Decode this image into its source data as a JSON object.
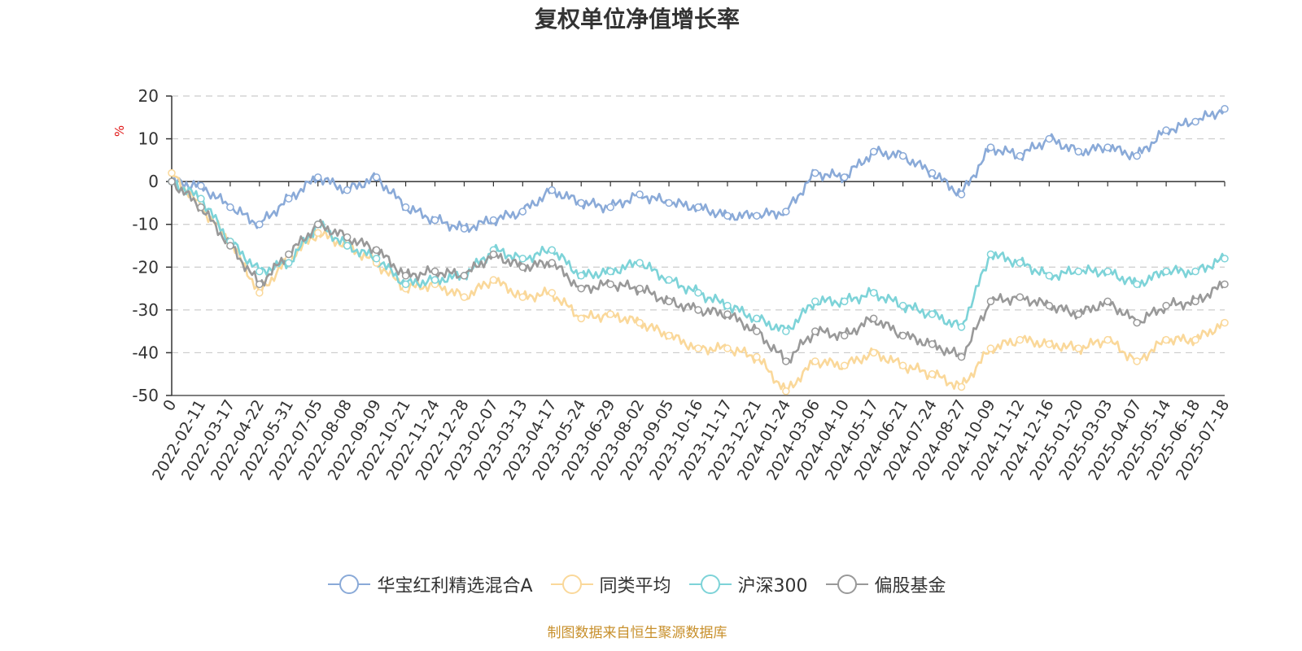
{
  "chart_data": {
    "type": "line",
    "title": "复权单位净值增长率",
    "ylabel": "%",
    "xlabel": "",
    "ylim": [
      -50,
      20
    ],
    "yticks": [
      20,
      10,
      0,
      -10,
      -20,
      -30,
      -40,
      -50
    ],
    "grid": true,
    "legend_position": "bottom",
    "categories": [
      "0",
      "2022-02-11",
      "2022-03-17",
      "2022-04-22",
      "2022-05-31",
      "2022-07-05",
      "2022-08-08",
      "2022-09-09",
      "2022-10-21",
      "2022-11-24",
      "2022-12-28",
      "2023-02-07",
      "2023-03-13",
      "2023-04-17",
      "2023-05-24",
      "2023-06-29",
      "2023-08-02",
      "2023-09-05",
      "2023-10-16",
      "2023-11-17",
      "2023-12-21",
      "2024-01-24",
      "2024-03-06",
      "2024-04-10",
      "2024-05-17",
      "2024-06-21",
      "2024-07-24",
      "2024-08-27",
      "2024-10-09",
      "2024-11-12",
      "2024-12-16",
      "2025-01-20",
      "2025-03-03",
      "2025-04-07",
      "2025-05-14",
      "2025-06-18",
      "2025-07-18"
    ],
    "series": [
      {
        "name": "华宝红利精选混合A",
        "color": "#8aaad8",
        "values": [
          0,
          -1,
          -6,
          -10,
          -4,
          1,
          -2,
          1,
          -6,
          -9,
          -11,
          -9,
          -7,
          -2,
          -5,
          -6,
          -3,
          -5,
          -6,
          -8,
          -8,
          -7,
          2,
          1,
          7,
          6,
          2,
          -3,
          8,
          6,
          10,
          7,
          8,
          6,
          12,
          14,
          17
        ]
      },
      {
        "name": "同类平均",
        "color": "#fad89a",
        "values": [
          2,
          -6,
          -14,
          -26,
          -18,
          -12,
          -15,
          -19,
          -25,
          -24,
          -27,
          -23,
          -27,
          -26,
          -32,
          -31,
          -33,
          -36,
          -39,
          -39,
          -41,
          -49,
          -42,
          -43,
          -40,
          -43,
          -45,
          -48,
          -39,
          -37,
          -38,
          -39,
          -37,
          -42,
          -37,
          -37,
          -33
        ]
      },
      {
        "name": "沪深300",
        "color": "#7dd3d8",
        "values": [
          0,
          -4,
          -14,
          -21,
          -19,
          -10,
          -15,
          -18,
          -24,
          -23,
          -22,
          -16,
          -18,
          -16,
          -22,
          -21,
          -19,
          -23,
          -26,
          -29,
          -32,
          -35,
          -28,
          -28,
          -26,
          -29,
          -31,
          -34,
          -17,
          -19,
          -22,
          -21,
          -21,
          -24,
          -21,
          -21,
          -18
        ]
      },
      {
        "name": "偏股基金",
        "color": "#999999",
        "values": [
          0,
          -6,
          -15,
          -24,
          -17,
          -10,
          -13,
          -16,
          -22,
          -21,
          -22,
          -17,
          -20,
          -19,
          -25,
          -24,
          -25,
          -28,
          -30,
          -31,
          -35,
          -42,
          -35,
          -36,
          -32,
          -36,
          -38,
          -41,
          -28,
          -27,
          -29,
          -31,
          -28,
          -33,
          -29,
          -28,
          -24
        ]
      }
    ]
  },
  "source_note": "制图数据来自恒生聚源数据库"
}
